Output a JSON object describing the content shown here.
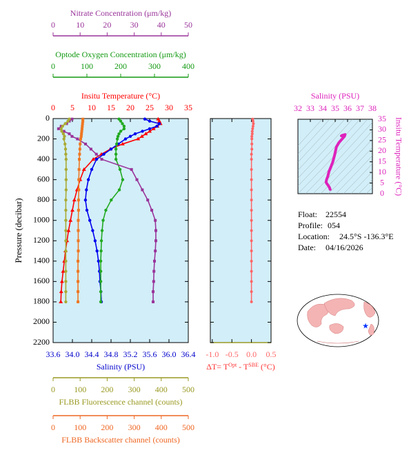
{
  "chart_data": [
    {
      "type": "profile",
      "ylabel": "Pressure (decibar)",
      "ylim": [
        0,
        2200
      ],
      "yticks": [
        0,
        200,
        400,
        600,
        800,
        1000,
        1200,
        1400,
        1600,
        1800,
        2000,
        2200
      ],
      "pressure": [
        5,
        25,
        50,
        75,
        100,
        125,
        150,
        175,
        200,
        250,
        300,
        350,
        400,
        500,
        600,
        700,
        800,
        900,
        1000,
        1100,
        1200,
        1300,
        1400,
        1500,
        1600,
        1700,
        1800
      ],
      "axes": [
        {
          "label": "Insitu Temperature (°C)",
          "color": "#ff0000",
          "side": "top",
          "lim": [
            0,
            35
          ],
          "ticks": [
            0,
            5,
            10,
            15,
            20,
            25,
            30,
            35
          ]
        },
        {
          "label": "Salinity (PSU)",
          "color": "#0000cc",
          "side": "bottom",
          "lim": [
            33.6,
            36.4
          ],
          "ticks": [
            33.6,
            {
              "value": 34,
              "label": "34.0"
            },
            34.4,
            34.8,
            35.2,
            35.6,
            {
              "value": 36,
              "label": "36.0"
            },
            36.4
          ]
        },
        {
          "label": "Optode Oxygen Concentration (μm/kg)",
          "color": "#119911",
          "side": "top",
          "lim": [
            0,
            400
          ],
          "ticks": [
            0,
            100,
            200,
            300,
            400
          ]
        },
        {
          "label": "FLBB Fluorescence channel (counts)",
          "color": "#999922",
          "side": "bottom",
          "lim": [
            0,
            500
          ],
          "ticks": [
            0,
            100,
            200,
            300,
            400,
            500
          ]
        },
        {
          "label": "Nitrate Concentration (μm/kg)",
          "color": "#993399",
          "side": "top",
          "lim": [
            0,
            50
          ],
          "ticks": [
            0,
            10,
            20,
            30,
            40,
            50
          ]
        },
        {
          "label": "FLBB Backscatter channel (counts)",
          "color": "#ee6622",
          "side": "bottom",
          "lim": [
            0,
            500
          ],
          "ticks": [
            0,
            100,
            200,
            300,
            400,
            500
          ]
        }
      ],
      "series": [
        {
          "axis": 0,
          "color": "#ff0000",
          "marker": "triangle",
          "values": [
            27.2,
            27.5,
            27.8,
            27,
            26,
            25,
            24,
            23,
            22,
            18,
            14.8,
            12.5,
            10.4,
            8,
            7,
            6.2,
            5.5,
            5,
            4.5,
            4,
            3.6,
            3.2,
            2.9,
            2.6,
            2.3,
            2.1,
            2.0
          ]
        },
        {
          "axis": 1,
          "color": "#0000ee",
          "marker": "circle",
          "values": [
            35.5,
            35.6,
            35.8,
            35.75,
            35.6,
            35.45,
            35.3,
            35.2,
            35.1,
            34.95,
            34.8,
            34.65,
            34.5,
            34.4,
            34.33,
            34.29,
            34.27,
            34.3,
            34.36,
            34.42,
            34.47,
            34.51,
            34.54,
            34.56,
            34.57,
            34.59,
            34.6
          ]
        },
        {
          "axis": 2,
          "color": "#22aa22",
          "marker": "circle",
          "values": [
            195,
            200,
            205,
            210,
            210,
            200,
            195,
            192,
            190,
            188,
            186,
            186,
            186,
            198,
            206,
            196,
            172,
            156,
            148,
            145,
            143,
            142,
            141,
            141,
            141,
            141,
            141
          ]
        },
        {
          "axis": 4,
          "color": "#993399",
          "marker": "square",
          "values": [
            7,
            6,
            5,
            3,
            2,
            4,
            6,
            7,
            9,
            12,
            14,
            16,
            18,
            29,
            31,
            33,
            35,
            36.5,
            37.8,
            38,
            38,
            37.8,
            37.5,
            37.3,
            37.2,
            37,
            37
          ]
        },
        {
          "axis": 3,
          "color": "#aaaa33",
          "marker": "circle",
          "values": [
            60,
            55,
            45,
            35,
            30,
            32,
            38,
            42,
            40,
            44,
            46,
            47,
            48,
            48,
            48,
            48,
            47,
            47,
            47,
            47,
            47,
            47,
            47,
            47,
            47,
            47,
            47
          ]
        },
        {
          "axis": 5,
          "color": "#ee7722",
          "marker": "square",
          "values": [
            110,
            110,
            109,
            108,
            107,
            106,
            105,
            104,
            102,
            100,
            99,
            98,
            97,
            96,
            95,
            95,
            94,
            94,
            93,
            93,
            93,
            93,
            92,
            92,
            92,
            92,
            92
          ]
        }
      ]
    },
    {
      "type": "delta",
      "xlabel": [
        "ΔT= T",
        "Opt",
        " - T",
        "SBE",
        " (°C)"
      ],
      "color": "#ff6666",
      "xlim": [
        -1.05,
        0.5
      ],
      "xticks": [
        {
          "value": -1,
          "label": "-1.0"
        },
        -0.5,
        {
          "value": 0,
          "label": "0.0"
        },
        0.5
      ],
      "values": [
        0.03,
        0.04,
        0.05,
        0.04,
        0.03,
        0.02,
        0.02,
        0.01,
        0.01,
        0.01,
        0.01,
        0,
        0,
        0,
        0,
        0,
        0,
        0,
        0,
        0,
        0,
        0,
        0,
        0,
        0,
        0,
        0
      ]
    },
    {
      "type": "ts",
      "color": "#dd22bb",
      "xlabel": "Salinity (PSU)",
      "ylabel": "Insitu Temperature (°C)",
      "xlim": [
        32,
        38
      ],
      "xticks": [
        32,
        33,
        34,
        35,
        36,
        37,
        38
      ],
      "ylim": [
        0,
        35
      ],
      "yticks": [
        0,
        5,
        10,
        15,
        20,
        25,
        30,
        35
      ]
    }
  ],
  "info": [
    {
      "label": "Float:",
      "value": "22554"
    },
    {
      "label": "Profile:",
      "value": "054"
    },
    {
      "label": "Location:",
      "value": "24.5°S  -136.3°E"
    },
    {
      "label": "Date:",
      "value": "04/16/2026"
    }
  ]
}
